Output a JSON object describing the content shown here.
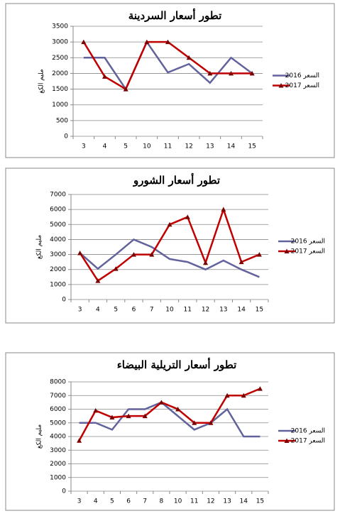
{
  "chart_data": [
    {
      "type": "line",
      "title": "تطور أسعار السردينة",
      "y_label": "مليم الكغ",
      "categories": [
        "3",
        "4",
        "5",
        "10",
        "11",
        "12",
        "13",
        "14",
        "15"
      ],
      "series": [
        {
          "name": "السعر 2016",
          "color": "#62629c",
          "values": [
            2500,
            2500,
            1500,
            3000,
            2030,
            2300,
            1700,
            2500,
            2000
          ]
        },
        {
          "name": "السعر 2017",
          "color": "#c00000",
          "values": [
            3000,
            1900,
            1500,
            3000,
            3000,
            2500,
            2000,
            2000,
            2000
          ]
        }
      ],
      "ylim": [
        0,
        3500
      ],
      "yticks": [
        0,
        500,
        1000,
        1500,
        2000,
        2500,
        3000,
        3500
      ],
      "grid": true,
      "legend": "right"
    },
    {
      "type": "line",
      "title": "تطور أسعار الشورو",
      "y_label": "مليم الكغ",
      "categories": [
        "3",
        "4",
        "5",
        "6",
        "7",
        "10",
        "11",
        "12",
        "13",
        "14",
        "15"
      ],
      "series": [
        {
          "name": "السعر 2016",
          "color": "#62629c",
          "values": [
            3100,
            2050,
            3000,
            4000,
            3500,
            2700,
            2500,
            2000,
            2600,
            2000,
            1500
          ]
        },
        {
          "name": "السعر 2017",
          "color": "#c00000",
          "values": [
            3100,
            1250,
            2050,
            3000,
            3000,
            5000,
            5500,
            2450,
            6000,
            2500,
            3000
          ]
        }
      ],
      "ylim": [
        0,
        7000
      ],
      "yticks": [
        0,
        1000,
        2000,
        3000,
        4000,
        5000,
        6000,
        7000
      ],
      "grid": true,
      "legend": "right"
    },
    {
      "type": "line",
      "title": "تطور أسعار التريلية البيضاء",
      "y_label": "مليم الكغ",
      "categories": [
        "3",
        "4",
        "5",
        "6",
        "7",
        "8",
        "10",
        "11",
        "12",
        "13",
        "14",
        "15"
      ],
      "series": [
        {
          "name": "السعر 2016",
          "color": "#62629c",
          "values": [
            5000,
            5000,
            4500,
            6000,
            6000,
            6500,
            5500,
            4500,
            5000,
            6000,
            4000,
            4000
          ]
        },
        {
          "name": "السعر 2017",
          "color": "#c00000",
          "values": [
            3700,
            5900,
            5400,
            5500,
            5500,
            6500,
            6000,
            5000,
            5000,
            7000,
            7000,
            7500
          ]
        }
      ],
      "ylim": [
        0,
        8000
      ],
      "yticks": [
        0,
        1000,
        2000,
        3000,
        4000,
        5000,
        6000,
        7000,
        8000
      ],
      "grid": true,
      "legend": "right"
    }
  ]
}
